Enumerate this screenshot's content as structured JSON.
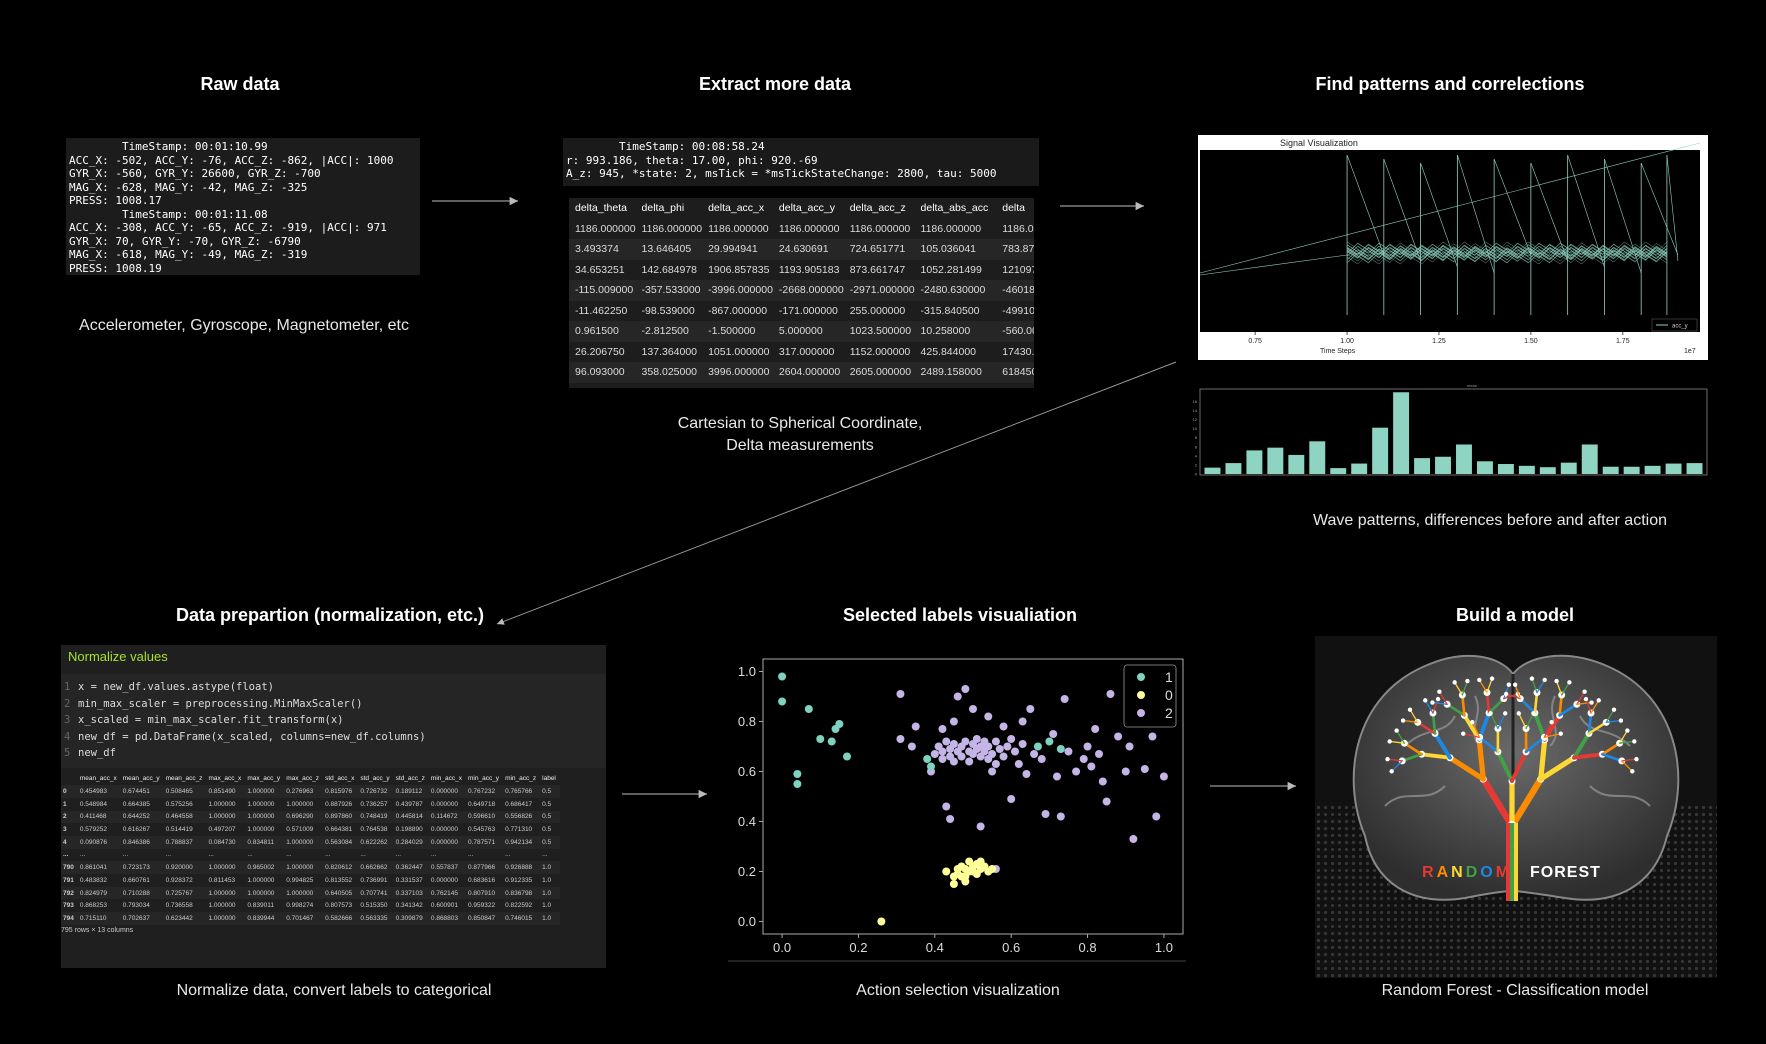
{
  "stages": {
    "raw": {
      "title": "Raw data",
      "caption": "Accelerometer, Gyroscope, Magnetometer, etc",
      "lines": [
        "        TimeStamp: 00:01:10.99",
        "ACC_X: -502, ACC_Y: -76, ACC_Z: -862, |ACC|: 1000",
        "GYR_X: -560, GYR_Y: 26600, GYR_Z: -700",
        "MAG_X: -628, MAG_Y: -42, MAG_Z: -325",
        "PRESS: 1008.17",
        "        TimeStamp: 00:01:11.08",
        "ACC_X: -308, ACC_Y: -65, ACC_Z: -919, |ACC|: 971",
        "GYR_X: 70, GYR_Y: -70, GYR_Z: -6790",
        "MAG_X: -618, MAG_Y: -49, MAG_Z: -319",
        "PRESS: 1008.19"
      ]
    },
    "extract": {
      "title": "Extract more data",
      "caption_line1": "Cartesian to Spherical Coordinate,",
      "caption_line2": "Delta measurements",
      "header_lines": [
        "        TimeStamp: 00:08:58.24",
        "r: 993.186, theta: 17.00, phi: 920.-69",
        "A_z: 945, *state: 2, msTick = *msTickStateChange: 2800, tau: 5000"
      ],
      "columns": [
        "delta_theta",
        "delta_phi",
        "delta_acc_x",
        "delta_acc_y",
        "delta_acc_z",
        "delta_abs_acc",
        "delta"
      ],
      "rows": [
        [
          "1186.000000",
          "1186.000000",
          "1186.000000",
          "1186.000000",
          "1186.000000",
          "1186.000000",
          "1186.00000"
        ],
        [
          "3.493374",
          "13.646405",
          "29.994941",
          "24.630691",
          "724.651771",
          "105.036041",
          "783.87015"
        ],
        [
          "34.653251",
          "142.684978",
          "1906.857835",
          "1193.905183",
          "873.661747",
          "1052.281499",
          "121097.018"
        ],
        [
          "-115.009000",
          "-357.533000",
          "-3996.000000",
          "-2668.000000",
          "-2971.000000",
          "-2480.630000",
          "-460180.00"
        ],
        [
          "-11.462250",
          "-98.539000",
          "-867.000000",
          "-171.000000",
          "255.000000",
          "-315.840500",
          "-49910.00"
        ],
        [
          "0.961500",
          "-2.812500",
          "-1.500000",
          "5.000000",
          "1023.500000",
          "10.258000",
          "-560.00000"
        ],
        [
          "26.206750",
          "137.364000",
          "1051.000000",
          "317.000000",
          "1152.000000",
          "425.844000",
          "17430.000"
        ],
        [
          "96.093000",
          "358.025000",
          "3996.000000",
          "2604.000000",
          "2605.000000",
          "2489.158000",
          "618450.00"
        ]
      ]
    },
    "patterns": {
      "title": "Find patterns and correlections",
      "caption": "Wave patterns,  differences before and after action",
      "signal_title": "Signal Visualization",
      "x_ticks": [
        "0.75",
        "1.00",
        "1.25",
        "1.50",
        "1.75"
      ],
      "x_label": "Time Steps",
      "x_exponent": "1e7",
      "legend": "acc_y",
      "bar_title": "mean",
      "bar_values": [
        1.4,
        2.4,
        5.2,
        5.8,
        4.2,
        7.2,
        1.3,
        2.3,
        10.2,
        18.0,
        3.5,
        3.8,
        6.5,
        2.8,
        2.2,
        1.8,
        1.5,
        2.5,
        6.5,
        1.6,
        1.6,
        1.8,
        2.3,
        2.4
      ],
      "bar_y_ticks": [
        "16",
        "14",
        "12",
        "10",
        "8",
        "6",
        "4",
        "2",
        "0"
      ]
    },
    "prep": {
      "title": "Data prepartion (normalization, etc.)",
      "caption": "Normalize data, convert labels to categorical",
      "cell_title": "Normalize values",
      "code": [
        "x = new_df.values.astype(float)",
        "min_max_scaler = preprocessing.MinMaxScaler()",
        "x_scaled = min_max_scaler.fit_transform(x)",
        "new_df = pd.DataFrame(x_scaled, columns=new_df.columns)",
        "new_df"
      ],
      "columns": [
        "",
        "mean_acc_x",
        "mean_acc_y",
        "mean_acc_z",
        "max_acc_x",
        "max_acc_y",
        "max_acc_z",
        "std_acc_x",
        "std_acc_y",
        "std_acc_z",
        "min_acc_x",
        "min_acc_y",
        "min_acc_z",
        "label"
      ],
      "rows": [
        [
          "0",
          "0.454983",
          "0.674451",
          "0.508465",
          "0.851490",
          "1.000000",
          "0.276963",
          "0.815976",
          "0.726732",
          "0.189112",
          "0.000000",
          "0.767232",
          "0.765766",
          "0.5"
        ],
        [
          "1",
          "0.548984",
          "0.664385",
          "0.575256",
          "1.000000",
          "1.000000",
          "1.000000",
          "0.887926",
          "0.736257",
          "0.439787",
          "0.000000",
          "0.649718",
          "0.686417",
          "0.5"
        ],
        [
          "2",
          "0.411468",
          "0.644252",
          "0.464558",
          "1.000000",
          "1.000000",
          "0.696290",
          "0.897860",
          "0.748419",
          "0.445814",
          "0.114672",
          "0.596610",
          "0.556826",
          "0.5"
        ],
        [
          "3",
          "0.579252",
          "0.616267",
          "0.514419",
          "0.497207",
          "1.000000",
          "0.571009",
          "0.664381",
          "0.764538",
          "0.198890",
          "0.000000",
          "0.545763",
          "0.771310",
          "0.5"
        ],
        [
          "4",
          "0.090876",
          "0.846386",
          "0.788837",
          "0.084730",
          "0.834811",
          "1.000000",
          "0.563084",
          "0.622262",
          "0.284029",
          "0.000000",
          "0.787571",
          "0.942134",
          "0.5"
        ],
        [
          "...",
          "...",
          "...",
          "...",
          "...",
          "...",
          "...",
          "...",
          "...",
          "...",
          "...",
          "...",
          "...",
          "..."
        ],
        [
          "790",
          "0.861041",
          "0.723173",
          "0.920000",
          "1.000000",
          "0.965002",
          "1.000000",
          "0.820612",
          "0.662662",
          "0.362447",
          "0.557837",
          "0.877966",
          "0.926888",
          "1.0"
        ],
        [
          "791",
          "0.483832",
          "0.660761",
          "0.928372",
          "0.811453",
          "1.000000",
          "0.994825",
          "0.813552",
          "0.736991",
          "0.331537",
          "0.000000",
          "0.683616",
          "0.912335",
          "1.0"
        ],
        [
          "792",
          "0.824979",
          "0.710288",
          "0.725767",
          "1.000000",
          "1.000000",
          "1.000000",
          "0.640505",
          "0.707741",
          "0.337103",
          "0.762145",
          "0.807910",
          "0.836798",
          "1.0"
        ],
        [
          "793",
          "0.868253",
          "0.793034",
          "0.736558",
          "1.000000",
          "0.839011",
          "0.998274",
          "0.807573",
          "0.515350",
          "0.341342",
          "0.600901",
          "0.959322",
          "0.822592",
          "1.0"
        ],
        [
          "794",
          "0.715110",
          "0.702637",
          "0.623442",
          "1.000000",
          "0.839944",
          "0.701467",
          "0.582666",
          "0.563335",
          "0.309879",
          "0.868803",
          "0.850847",
          "0.746015",
          "1.0"
        ]
      ],
      "footer": "795 rows × 13 columns"
    },
    "labels": {
      "title": "Selected labels visualiation",
      "caption": "Action selection visualization"
    },
    "model": {
      "title": "Build a model",
      "caption": "Random Forest - Classification model",
      "logo_word1": "RANDOM",
      "logo_word2": "FOREST",
      "logo_colors": [
        "#e53935",
        "#fb8c00",
        "#fdd835",
        "#43a047",
        "#1e88e5",
        "#ffffff"
      ]
    }
  },
  "chart_data": [
    {
      "type": "scatter",
      "title": "",
      "xlabel": "",
      "ylabel": "",
      "xlim": [
        -0.05,
        1.05
      ],
      "ylim": [
        -0.05,
        1.05
      ],
      "x_ticks": [
        "0.0",
        "0.2",
        "0.4",
        "0.6",
        "0.8",
        "1.0"
      ],
      "y_ticks": [
        "0.0",
        "0.2",
        "0.4",
        "0.6",
        "0.8",
        "1.0"
      ],
      "legend_position": "top-right",
      "grid": false,
      "series": [
        {
          "name": "1",
          "color": "#7dd3c0",
          "points": [
            [
              0.0,
              0.98
            ],
            [
              0.0,
              0.88
            ],
            [
              0.04,
              0.59
            ],
            [
              0.04,
              0.55
            ],
            [
              0.07,
              0.85
            ],
            [
              0.1,
              0.73
            ],
            [
              0.13,
              0.72
            ],
            [
              0.14,
              0.77
            ],
            [
              0.15,
              0.79
            ],
            [
              0.17,
              0.66
            ],
            [
              0.38,
              0.65
            ],
            [
              0.39,
              0.62
            ],
            [
              0.67,
              0.7
            ],
            [
              0.7,
              0.72
            ],
            [
              0.73,
              0.69
            ]
          ]
        },
        {
          "name": "0",
          "color": "#ffff99",
          "points": [
            [
              0.26,
              0.0
            ],
            [
              0.43,
              0.2
            ],
            [
              0.45,
              0.15
            ],
            [
              0.46,
              0.21
            ],
            [
              0.46,
              0.19
            ],
            [
              0.47,
              0.18
            ],
            [
              0.47,
              0.22
            ],
            [
              0.48,
              0.21
            ],
            [
              0.48,
              0.18
            ],
            [
              0.49,
              0.24
            ],
            [
              0.49,
              0.2
            ],
            [
              0.5,
              0.22
            ],
            [
              0.5,
              0.2
            ],
            [
              0.51,
              0.23
            ],
            [
              0.51,
              0.19
            ],
            [
              0.52,
              0.21
            ],
            [
              0.53,
              0.22
            ],
            [
              0.54,
              0.2
            ],
            [
              0.55,
              0.21
            ],
            [
              0.45,
              0.18
            ],
            [
              0.48,
              0.16
            ],
            [
              0.52,
              0.24
            ]
          ]
        },
        {
          "name": "2",
          "color": "#c4b5e6",
          "points": [
            [
              0.31,
              0.91
            ],
            [
              0.31,
              0.73
            ],
            [
              0.34,
              0.7
            ],
            [
              0.4,
              0.67
            ],
            [
              0.41,
              0.7
            ],
            [
              0.42,
              0.68
            ],
            [
              0.42,
              0.65
            ],
            [
              0.43,
              0.72
            ],
            [
              0.44,
              0.69
            ],
            [
              0.44,
              0.66
            ],
            [
              0.45,
              0.71
            ],
            [
              0.45,
              0.64
            ],
            [
              0.46,
              0.68
            ],
            [
              0.46,
              0.9
            ],
            [
              0.47,
              0.7
            ],
            [
              0.47,
              0.66
            ],
            [
              0.48,
              0.72
            ],
            [
              0.48,
              0.93
            ],
            [
              0.49,
              0.68
            ],
            [
              0.49,
              0.64
            ],
            [
              0.5,
              0.71
            ],
            [
              0.5,
              0.67
            ],
            [
              0.51,
              0.69
            ],
            [
              0.51,
              0.73
            ],
            [
              0.52,
              0.66
            ],
            [
              0.52,
              0.7
            ],
            [
              0.53,
              0.68
            ],
            [
              0.53,
              0.72
            ],
            [
              0.54,
              0.65
            ],
            [
              0.54,
              0.7
            ],
            [
              0.55,
              0.67
            ],
            [
              0.56,
              0.72
            ],
            [
              0.56,
              0.63
            ],
            [
              0.57,
              0.69
            ],
            [
              0.58,
              0.66
            ],
            [
              0.59,
              0.7
            ],
            [
              0.6,
              0.73
            ],
            [
              0.61,
              0.68
            ],
            [
              0.62,
              0.63
            ],
            [
              0.63,
              0.71
            ],
            [
              0.64,
              0.59
            ],
            [
              0.65,
              0.85
            ],
            [
              0.66,
              0.67
            ],
            [
              0.68,
              0.65
            ],
            [
              0.71,
              0.75
            ],
            [
              0.72,
              0.58
            ],
            [
              0.74,
              0.89
            ],
            [
              0.75,
              0.68
            ],
            [
              0.77,
              0.6
            ],
            [
              0.79,
              0.65
            ],
            [
              0.8,
              0.7
            ],
            [
              0.81,
              0.62
            ],
            [
              0.82,
              0.77
            ],
            [
              0.83,
              0.67
            ],
            [
              0.84,
              0.56
            ],
            [
              0.86,
              0.91
            ],
            [
              0.88,
              0.74
            ],
            [
              0.9,
              0.6
            ],
            [
              0.91,
              0.7
            ],
            [
              0.92,
              0.33
            ],
            [
              0.94,
              0.85
            ],
            [
              0.95,
              0.61
            ],
            [
              0.96,
              0.94
            ],
            [
              0.97,
              0.74
            ],
            [
              0.98,
              0.42
            ],
            [
              0.99,
              0.87
            ],
            [
              1.0,
              0.58
            ],
            [
              0.43,
              0.46
            ],
            [
              0.44,
              0.41
            ],
            [
              0.52,
              0.38
            ],
            [
              0.56,
              0.21
            ],
            [
              0.6,
              0.49
            ],
            [
              0.69,
              0.43
            ],
            [
              0.73,
              0.42
            ],
            [
              0.85,
              0.48
            ],
            [
              0.45,
              0.8
            ],
            [
              0.5,
              0.85
            ],
            [
              0.54,
              0.82
            ],
            [
              0.58,
              0.78
            ],
            [
              0.63,
              0.8
            ],
            [
              0.35,
              0.78
            ],
            [
              0.39,
              0.6
            ],
            [
              0.42,
              0.77
            ],
            [
              0.55,
              0.6
            ]
          ]
        }
      ]
    },
    {
      "type": "bar",
      "title": "mean",
      "values": [
        1.4,
        2.4,
        5.2,
        5.8,
        4.2,
        7.2,
        1.3,
        2.3,
        10.2,
        18.0,
        3.5,
        3.8,
        6.5,
        2.8,
        2.2,
        1.8,
        1.5,
        2.5,
        6.5,
        1.6,
        1.6,
        1.8,
        2.3,
        2.4
      ],
      "ylim": [
        0,
        18.5
      ]
    }
  ]
}
